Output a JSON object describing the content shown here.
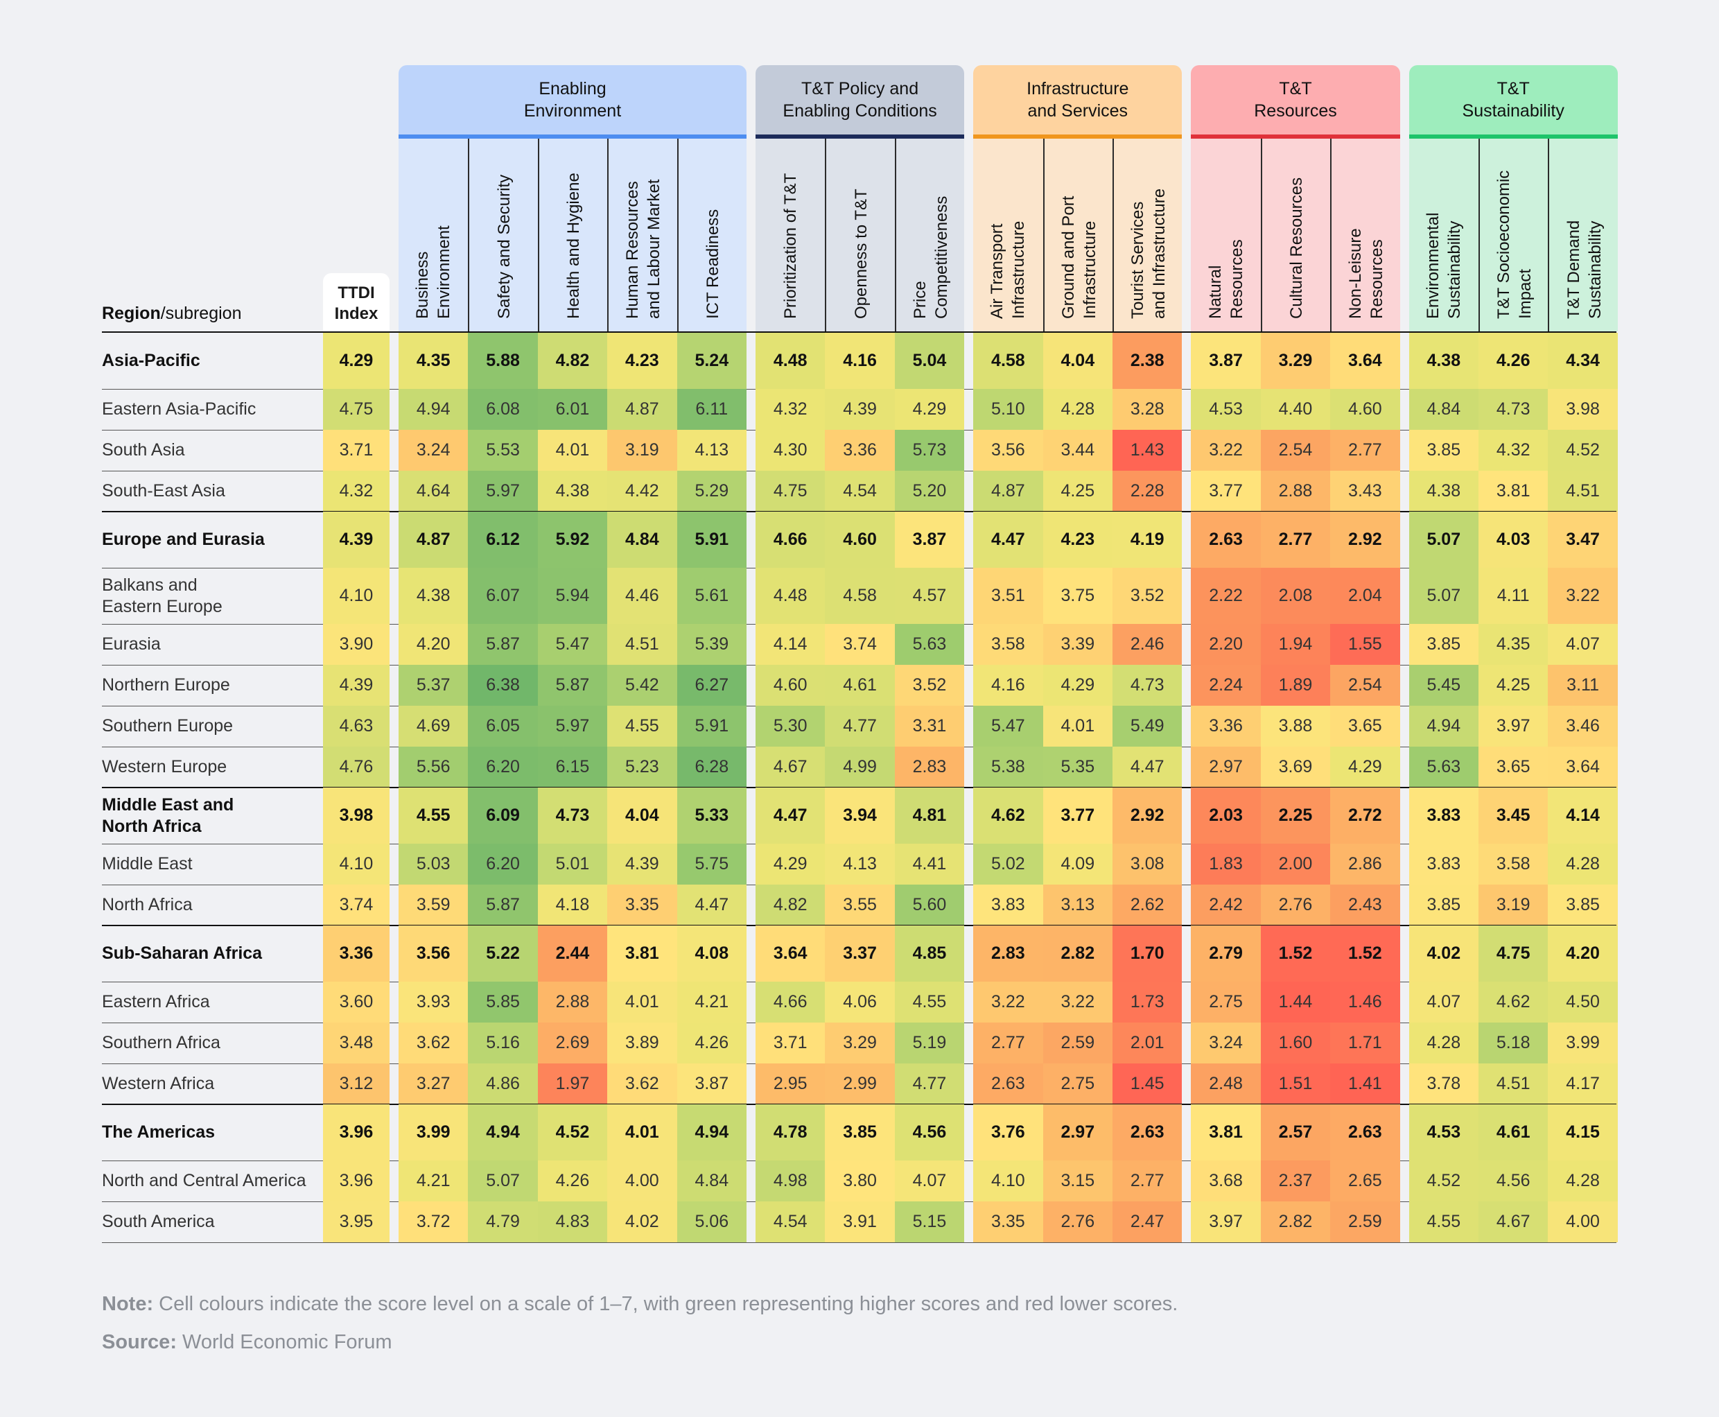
{
  "chart_data": {
    "type": "table",
    "row_header_bold": "Region",
    "row_header_rest": "/subregion",
    "index_column": "TTDI\nIndex",
    "scale": [
      1,
      7
    ],
    "pillars": [
      {
        "label": "Enabling\nEnvironment",
        "color": "#bdd4fb",
        "bar": "#4d8df0",
        "sub_bg": "#d9e6fb",
        "columns": [
          "Business\nEnvironment",
          "Safety and Security",
          "Health and Hygiene",
          "Human Resources\nand Labour Market",
          "ICT Readiness"
        ]
      },
      {
        "label": "T&T Policy and\nEnabling Conditions",
        "color": "#c3cbd9",
        "bar": "#1c2b5a",
        "sub_bg": "#dde2ea",
        "columns": [
          "Prioritization of T&T",
          "Openness to T&T",
          "Price\nCompetitiveness"
        ]
      },
      {
        "label": "Infrastructure\nand Services",
        "color": "#fed39f",
        "bar": "#f0961e",
        "sub_bg": "#fbe5cc",
        "columns": [
          "Air Transport\nInfrastructure",
          "Ground and Port\nInfrastructure",
          "Tourist Services\nand Infrastructure"
        ]
      },
      {
        "label": "T&T\nResources",
        "color": "#fdadb0",
        "bar": "#e0313a",
        "sub_bg": "#fbd4d6",
        "columns": [
          "Natural\nResources",
          "Cultural Resources",
          "Non-Leisure\nResources"
        ]
      },
      {
        "label": "T&T\nSustainability",
        "color": "#9eedbd",
        "bar": "#1ec46a",
        "sub_bg": "#cdf1dc",
        "columns": [
          "Environmental\nSustainability",
          "T&T Socioeconomic\nImpact",
          "T&T Demand\nSustainability"
        ]
      }
    ],
    "rows": [
      {
        "name": "Asia-Pacific",
        "bold": true,
        "values": [
          4.29,
          4.35,
          5.88,
          4.82,
          4.23,
          5.24,
          4.48,
          4.16,
          5.04,
          4.58,
          4.04,
          2.38,
          3.87,
          3.29,
          3.64,
          4.38,
          4.26,
          4.34
        ]
      },
      {
        "name": "Eastern Asia-Pacific",
        "bold": false,
        "values": [
          4.75,
          4.94,
          6.08,
          6.01,
          4.87,
          6.11,
          4.32,
          4.39,
          4.29,
          5.1,
          4.28,
          3.28,
          4.53,
          4.4,
          4.6,
          4.84,
          4.73,
          3.98
        ]
      },
      {
        "name": "South Asia",
        "bold": false,
        "values": [
          3.71,
          3.24,
          5.53,
          4.01,
          3.19,
          4.13,
          4.3,
          3.36,
          5.73,
          3.56,
          3.44,
          1.43,
          3.22,
          2.54,
          2.77,
          3.85,
          4.32,
          4.52
        ]
      },
      {
        "name": "South-East Asia",
        "bold": false,
        "values": [
          4.32,
          4.64,
          5.97,
          4.38,
          4.42,
          5.29,
          4.75,
          4.54,
          5.2,
          4.87,
          4.25,
          2.28,
          3.77,
          2.88,
          3.43,
          4.38,
          3.81,
          4.51
        ]
      },
      {
        "name": "Europe and Eurasia",
        "bold": true,
        "values": [
          4.39,
          4.87,
          6.12,
          5.92,
          4.84,
          5.91,
          4.66,
          4.6,
          3.87,
          4.47,
          4.23,
          4.19,
          2.63,
          2.77,
          2.92,
          5.07,
          4.03,
          3.47
        ]
      },
      {
        "name": "Balkans and\nEastern Europe",
        "bold": false,
        "values": [
          4.1,
          4.38,
          6.07,
          5.94,
          4.46,
          5.61,
          4.48,
          4.58,
          4.57,
          3.51,
          3.75,
          3.52,
          2.22,
          2.08,
          2.04,
          5.07,
          4.11,
          3.22
        ]
      },
      {
        "name": "Eurasia",
        "bold": false,
        "values": [
          3.9,
          4.2,
          5.87,
          5.47,
          4.51,
          5.39,
          4.14,
          3.74,
          5.63,
          3.58,
          3.39,
          2.46,
          2.2,
          1.94,
          1.55,
          3.85,
          4.35,
          4.07
        ]
      },
      {
        "name": "Northern Europe",
        "bold": false,
        "values": [
          4.39,
          5.37,
          6.38,
          5.87,
          5.42,
          6.27,
          4.6,
          4.61,
          3.52,
          4.16,
          4.29,
          4.73,
          2.24,
          1.89,
          2.54,
          5.45,
          4.25,
          3.11
        ]
      },
      {
        "name": "Southern Europe",
        "bold": false,
        "values": [
          4.63,
          4.69,
          6.05,
          5.97,
          4.55,
          5.91,
          5.3,
          4.77,
          3.31,
          5.47,
          4.01,
          5.49,
          3.36,
          3.88,
          3.65,
          4.94,
          3.97,
          3.46
        ]
      },
      {
        "name": "Western Europe",
        "bold": false,
        "values": [
          4.76,
          5.56,
          6.2,
          6.15,
          5.23,
          6.28,
          4.67,
          4.99,
          2.83,
          5.38,
          5.35,
          4.47,
          2.97,
          3.69,
          4.29,
          5.63,
          3.65,
          3.64
        ]
      },
      {
        "name": "Middle East and\nNorth Africa",
        "bold": true,
        "values": [
          3.98,
          4.55,
          6.09,
          4.73,
          4.04,
          5.33,
          4.47,
          3.94,
          4.81,
          4.62,
          3.77,
          2.92,
          2.03,
          2.25,
          2.72,
          3.83,
          3.45,
          4.14
        ]
      },
      {
        "name": "Middle East",
        "bold": false,
        "values": [
          4.1,
          5.03,
          6.2,
          5.01,
          4.39,
          5.75,
          4.29,
          4.13,
          4.41,
          5.02,
          4.09,
          3.08,
          1.83,
          2.0,
          2.86,
          3.83,
          3.58,
          4.28
        ]
      },
      {
        "name": "North Africa",
        "bold": false,
        "values": [
          3.74,
          3.59,
          5.87,
          4.18,
          3.35,
          4.47,
          4.82,
          3.55,
          5.6,
          3.83,
          3.13,
          2.62,
          2.42,
          2.76,
          2.43,
          3.85,
          3.19,
          3.85
        ]
      },
      {
        "name": "Sub-Saharan Africa",
        "bold": true,
        "values": [
          3.36,
          3.56,
          5.22,
          2.44,
          3.81,
          4.08,
          3.64,
          3.37,
          4.85,
          2.83,
          2.82,
          1.7,
          2.79,
          1.52,
          1.52,
          4.02,
          4.75,
          4.2
        ]
      },
      {
        "name": "Eastern Africa",
        "bold": false,
        "values": [
          3.6,
          3.93,
          5.85,
          2.88,
          4.01,
          4.21,
          4.66,
          4.06,
          4.55,
          3.22,
          3.22,
          1.73,
          2.75,
          1.44,
          1.46,
          4.07,
          4.62,
          4.5
        ]
      },
      {
        "name": "Southern Africa",
        "bold": false,
        "values": [
          3.48,
          3.62,
          5.16,
          2.69,
          3.89,
          4.26,
          3.71,
          3.29,
          5.19,
          2.77,
          2.59,
          2.01,
          3.24,
          1.6,
          1.71,
          4.28,
          5.18,
          3.99
        ]
      },
      {
        "name": "Western Africa",
        "bold": false,
        "values": [
          3.12,
          3.27,
          4.86,
          1.97,
          3.62,
          3.87,
          2.95,
          2.99,
          4.77,
          2.63,
          2.75,
          1.45,
          2.48,
          1.51,
          1.41,
          3.78,
          4.51,
          4.17
        ]
      },
      {
        "name": "The Americas",
        "bold": true,
        "values": [
          3.96,
          3.99,
          4.94,
          4.52,
          4.01,
          4.94,
          4.78,
          3.85,
          4.56,
          3.76,
          2.97,
          2.63,
          3.81,
          2.57,
          2.63,
          4.53,
          4.61,
          4.15
        ]
      },
      {
        "name": "North and Central America",
        "bold": false,
        "values": [
          3.96,
          4.21,
          5.07,
          4.26,
          4.0,
          4.84,
          4.98,
          3.8,
          4.07,
          4.1,
          3.15,
          2.77,
          3.68,
          2.37,
          2.65,
          4.52,
          4.56,
          4.28
        ]
      },
      {
        "name": "South America",
        "bold": false,
        "values": [
          3.95,
          3.72,
          4.79,
          4.83,
          4.02,
          5.06,
          4.54,
          3.91,
          5.15,
          3.35,
          2.76,
          2.47,
          3.97,
          2.82,
          2.59,
          4.55,
          4.67,
          4.0
        ]
      }
    ]
  },
  "footer": {
    "note_label": "Note:",
    "note_text": " Cell colours indicate the score level on a scale of 1–7, with green representing higher scores and red lower scores.",
    "source_label": "Source:",
    "source_text": " World Economic Forum"
  }
}
